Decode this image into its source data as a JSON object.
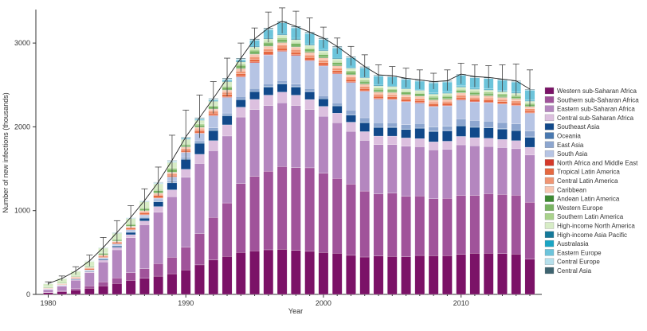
{
  "chart_data": {
    "type": "bar",
    "stacked": true,
    "title": "",
    "xlabel": "Year",
    "ylabel": "Number of new infections (thousands)",
    "x_start": 1980,
    "x_end": 2015,
    "xticks": [
      1980,
      1990,
      2000,
      2010
    ],
    "yticks": [
      0,
      1000,
      2000,
      3000
    ],
    "ylim": [
      0,
      3400
    ],
    "legend_position": "right",
    "totals": [
      130,
      190,
      280,
      400,
      560,
      740,
      920,
      1120,
      1340,
      1600,
      1880,
      2110,
      2340,
      2580,
      2820,
      3050,
      3180,
      3260,
      3200,
      3130,
      3060,
      2960,
      2840,
      2720,
      2620,
      2610,
      2580,
      2560,
      2540,
      2550,
      2630,
      2600,
      2590,
      2570,
      2550,
      2450
    ],
    "upper_bounds": [
      150,
      220,
      330,
      470,
      680,
      880,
      1060,
      1260,
      1520,
      1900,
      2200,
      2380,
      2540,
      2820,
      3000,
      3180,
      3370,
      3420,
      3380,
      3300,
      3190,
      3060,
      2960,
      2860,
      2740,
      2720,
      2700,
      2680,
      2640,
      2680,
      2760,
      2740,
      2730,
      2740,
      2750,
      2680
    ],
    "series": [
      {
        "name": "Western sub-Saharan Africa",
        "color": "#7b1267",
        "share": [
          0.16,
          0.16,
          0.17,
          0.18,
          0.18,
          0.17,
          0.18,
          0.17,
          0.16,
          0.15,
          0.15,
          0.16,
          0.17,
          0.17,
          0.17,
          0.17,
          0.17,
          0.17,
          0.17,
          0.17,
          0.17,
          0.17,
          0.17,
          0.17,
          0.18,
          0.18,
          0.18,
          0.19,
          0.19,
          0.19,
          0.19,
          0.2,
          0.2,
          0.2,
          0.2,
          0.18
        ]
      },
      {
        "name": "Southern sub-Saharan Africa",
        "color": "#a0539a",
        "share": [
          0.03,
          0.05,
          0.06,
          0.07,
          0.08,
          0.09,
          0.1,
          0.1,
          0.11,
          0.12,
          0.14,
          0.17,
          0.21,
          0.24,
          0.28,
          0.29,
          0.3,
          0.31,
          0.32,
          0.33,
          0.32,
          0.31,
          0.31,
          0.3,
          0.29,
          0.3,
          0.29,
          0.29,
          0.28,
          0.28,
          0.28,
          0.28,
          0.29,
          0.29,
          0.29,
          0.29
        ]
      },
      {
        "name": "Eastern sub-Saharan Africa",
        "color": "#b486bf",
        "share": [
          0.22,
          0.28,
          0.34,
          0.38,
          0.42,
          0.44,
          0.45,
          0.46,
          0.45,
          0.44,
          0.43,
          0.38,
          0.33,
          0.3,
          0.27,
          0.26,
          0.25,
          0.24,
          0.24,
          0.23,
          0.23,
          0.23,
          0.23,
          0.23,
          0.23,
          0.23,
          0.24,
          0.24,
          0.24,
          0.24,
          0.24,
          0.24,
          0.23,
          0.23,
          0.23,
          0.24
        ]
      },
      {
        "name": "Central sub-Saharan Africa",
        "color": "#dcc0df",
        "share": [
          0.03,
          0.03,
          0.03,
          0.03,
          0.04,
          0.04,
          0.04,
          0.04,
          0.05,
          0.05,
          0.05,
          0.05,
          0.05,
          0.05,
          0.04,
          0.04,
          0.04,
          0.04,
          0.04,
          0.04,
          0.04,
          0.04,
          0.04,
          0.04,
          0.04,
          0.04,
          0.04,
          0.04,
          0.04,
          0.04,
          0.04,
          0.04,
          0.04,
          0.04,
          0.04,
          0.04
        ]
      },
      {
        "name": "Southeast Asia",
        "color": "#11498a",
        "share": [
          0.02,
          0.02,
          0.02,
          0.02,
          0.02,
          0.02,
          0.03,
          0.03,
          0.04,
          0.05,
          0.06,
          0.06,
          0.05,
          0.04,
          0.03,
          0.03,
          0.03,
          0.03,
          0.03,
          0.03,
          0.03,
          0.03,
          0.03,
          0.04,
          0.04,
          0.04,
          0.04,
          0.05,
          0.05,
          0.05,
          0.05,
          0.05,
          0.05,
          0.05,
          0.05,
          0.05
        ]
      },
      {
        "name": "Oceania",
        "color": "#4878b0",
        "share": [
          0.003,
          0.003,
          0.003,
          0.003,
          0.003,
          0.003,
          0.003,
          0.003,
          0.003,
          0.003,
          0.003,
          0.003,
          0.003,
          0.003,
          0.003,
          0.003,
          0.003,
          0.003,
          0.003,
          0.003,
          0.003,
          0.003,
          0.003,
          0.003,
          0.003,
          0.003,
          0.003,
          0.003,
          0.003,
          0.003,
          0.003,
          0.003,
          0.003,
          0.003,
          0.003,
          0.003
        ]
      },
      {
        "name": "East Asia",
        "color": "#8da6cf",
        "share": [
          0.01,
          0.01,
          0.01,
          0.01,
          0.01,
          0.01,
          0.01,
          0.01,
          0.01,
          0.01,
          0.01,
          0.01,
          0.01,
          0.01,
          0.01,
          0.01,
          0.01,
          0.01,
          0.01,
          0.01,
          0.01,
          0.01,
          0.02,
          0.02,
          0.02,
          0.02,
          0.02,
          0.02,
          0.02,
          0.02,
          0.03,
          0.03,
          0.03,
          0.03,
          0.03,
          0.03
        ]
      },
      {
        "name": "South Asia",
        "color": "#b6c4e4",
        "share": [
          0.02,
          0.02,
          0.02,
          0.02,
          0.02,
          0.02,
          0.02,
          0.02,
          0.02,
          0.03,
          0.03,
          0.04,
          0.06,
          0.07,
          0.08,
          0.1,
          0.11,
          0.11,
          0.11,
          0.11,
          0.12,
          0.12,
          0.12,
          0.12,
          0.11,
          0.11,
          0.11,
          0.1,
          0.1,
          0.1,
          0.09,
          0.09,
          0.09,
          0.09,
          0.09,
          0.09
        ]
      },
      {
        "name": "North Africa and Middle East",
        "color": "#d4392a",
        "share": [
          0.003,
          0.003,
          0.003,
          0.003,
          0.003,
          0.003,
          0.003,
          0.003,
          0.003,
          0.003,
          0.003,
          0.003,
          0.003,
          0.003,
          0.003,
          0.003,
          0.003,
          0.003,
          0.003,
          0.003,
          0.003,
          0.003,
          0.003,
          0.003,
          0.003,
          0.003,
          0.003,
          0.003,
          0.003,
          0.003,
          0.003,
          0.003,
          0.003,
          0.003,
          0.003,
          0.003
        ]
      },
      {
        "name": "Tropical Latin America",
        "color": "#e56840",
        "share": [
          0.03,
          0.03,
          0.03,
          0.03,
          0.02,
          0.02,
          0.02,
          0.02,
          0.02,
          0.01,
          0.01,
          0.01,
          0.01,
          0.01,
          0.01,
          0.01,
          0.01,
          0.01,
          0.01,
          0.01,
          0.01,
          0.01,
          0.01,
          0.01,
          0.01,
          0.01,
          0.01,
          0.01,
          0.01,
          0.01,
          0.01,
          0.01,
          0.01,
          0.01,
          0.01,
          0.01
        ]
      },
      {
        "name": "Central Latin America",
        "color": "#f09674",
        "share": [
          0.02,
          0.02,
          0.02,
          0.02,
          0.02,
          0.01,
          0.01,
          0.01,
          0.01,
          0.01,
          0.01,
          0.01,
          0.01,
          0.01,
          0.01,
          0.01,
          0.01,
          0.01,
          0.01,
          0.01,
          0.01,
          0.01,
          0.01,
          0.01,
          0.01,
          0.01,
          0.01,
          0.01,
          0.01,
          0.01,
          0.01,
          0.01,
          0.01,
          0.01,
          0.01,
          0.01
        ]
      },
      {
        "name": "Caribbean",
        "color": "#f8c7b2",
        "share": [
          0.03,
          0.02,
          0.02,
          0.02,
          0.01,
          0.01,
          0.01,
          0.01,
          0.01,
          0.01,
          0.01,
          0.01,
          0.01,
          0.01,
          0.01,
          0.01,
          0.01,
          0.01,
          0.01,
          0.01,
          0.01,
          0.01,
          0.01,
          0.01,
          0.01,
          0.01,
          0.01,
          0.01,
          0.01,
          0.01,
          0.01,
          0.01,
          0.01,
          0.01,
          0.01,
          0.01
        ]
      },
      {
        "name": "Andean Latin America",
        "color": "#3d8a32",
        "share": [
          0.003,
          0.003,
          0.003,
          0.003,
          0.003,
          0.003,
          0.003,
          0.003,
          0.003,
          0.003,
          0.003,
          0.003,
          0.003,
          0.003,
          0.003,
          0.003,
          0.003,
          0.003,
          0.003,
          0.003,
          0.003,
          0.003,
          0.003,
          0.003,
          0.003,
          0.003,
          0.003,
          0.003,
          0.003,
          0.003,
          0.003,
          0.003,
          0.003,
          0.003,
          0.003,
          0.003
        ]
      },
      {
        "name": "Western Europe",
        "color": "#79b462",
        "share": [
          0.05,
          0.04,
          0.03,
          0.03,
          0.03,
          0.02,
          0.02,
          0.02,
          0.02,
          0.02,
          0.01,
          0.01,
          0.01,
          0.01,
          0.01,
          0.01,
          0.01,
          0.01,
          0.01,
          0.01,
          0.01,
          0.01,
          0.01,
          0.01,
          0.01,
          0.01,
          0.01,
          0.01,
          0.01,
          0.01,
          0.01,
          0.01,
          0.01,
          0.01,
          0.01,
          0.01
        ]
      },
      {
        "name": "Southern Latin America",
        "color": "#a9d28c",
        "share": [
          0.01,
          0.01,
          0.01,
          0.01,
          0.01,
          0.01,
          0.01,
          0.01,
          0.01,
          0.01,
          0.005,
          0.005,
          0.005,
          0.005,
          0.005,
          0.005,
          0.005,
          0.005,
          0.005,
          0.005,
          0.005,
          0.005,
          0.005,
          0.005,
          0.005,
          0.005,
          0.005,
          0.005,
          0.005,
          0.005,
          0.005,
          0.005,
          0.005,
          0.005,
          0.005,
          0.005
        ]
      },
      {
        "name": "High-income North America",
        "color": "#d7ecc6",
        "share": [
          0.28,
          0.23,
          0.17,
          0.13,
          0.1,
          0.09,
          0.07,
          0.06,
          0.05,
          0.04,
          0.03,
          0.02,
          0.02,
          0.02,
          0.01,
          0.01,
          0.01,
          0.01,
          0.01,
          0.01,
          0.01,
          0.01,
          0.01,
          0.01,
          0.01,
          0.01,
          0.01,
          0.01,
          0.01,
          0.01,
          0.01,
          0.01,
          0.01,
          0.01,
          0.01,
          0.01
        ]
      },
      {
        "name": "High-income Asia Pacific",
        "color": "#15799a",
        "share": [
          0.003,
          0.003,
          0.003,
          0.003,
          0.003,
          0.003,
          0.003,
          0.003,
          0.003,
          0.003,
          0.003,
          0.003,
          0.003,
          0.003,
          0.003,
          0.003,
          0.003,
          0.003,
          0.003,
          0.003,
          0.003,
          0.003,
          0.003,
          0.003,
          0.003,
          0.003,
          0.003,
          0.003,
          0.003,
          0.003,
          0.003,
          0.003,
          0.003,
          0.003,
          0.003,
          0.003
        ]
      },
      {
        "name": "Australasia",
        "color": "#1aa5c4",
        "share": [
          0.003,
          0.003,
          0.003,
          0.003,
          0.003,
          0.003,
          0.003,
          0.003,
          0.003,
          0.003,
          0.003,
          0.003,
          0.003,
          0.003,
          0.003,
          0.003,
          0.003,
          0.003,
          0.003,
          0.003,
          0.003,
          0.003,
          0.003,
          0.003,
          0.003,
          0.003,
          0.003,
          0.003,
          0.003,
          0.003,
          0.003,
          0.003,
          0.003,
          0.003,
          0.003,
          0.003
        ]
      },
      {
        "name": "Eastern Europe",
        "color": "#6cc4db",
        "share": [
          0.003,
          0.003,
          0.003,
          0.003,
          0.003,
          0.003,
          0.003,
          0.003,
          0.003,
          0.003,
          0.003,
          0.003,
          0.003,
          0.003,
          0.003,
          0.02,
          0.03,
          0.04,
          0.04,
          0.04,
          0.04,
          0.04,
          0.04,
          0.04,
          0.04,
          0.04,
          0.04,
          0.04,
          0.05,
          0.05,
          0.05,
          0.05,
          0.05,
          0.05,
          0.05,
          0.05
        ]
      },
      {
        "name": "Central Europe",
        "color": "#b6e0ec",
        "share": [
          0.003,
          0.003,
          0.003,
          0.003,
          0.003,
          0.003,
          0.003,
          0.003,
          0.003,
          0.003,
          0.003,
          0.003,
          0.003,
          0.003,
          0.003,
          0.003,
          0.003,
          0.003,
          0.003,
          0.003,
          0.003,
          0.003,
          0.003,
          0.003,
          0.003,
          0.003,
          0.003,
          0.003,
          0.003,
          0.003,
          0.003,
          0.003,
          0.003,
          0.003,
          0.003,
          0.003
        ]
      },
      {
        "name": "Central Asia",
        "color": "#3e6470",
        "share": [
          0.003,
          0.003,
          0.003,
          0.003,
          0.003,
          0.003,
          0.003,
          0.003,
          0.003,
          0.003,
          0.003,
          0.003,
          0.003,
          0.003,
          0.003,
          0.003,
          0.003,
          0.003,
          0.003,
          0.003,
          0.003,
          0.003,
          0.003,
          0.003,
          0.003,
          0.003,
          0.003,
          0.003,
          0.003,
          0.003,
          0.003,
          0.003,
          0.003,
          0.003,
          0.003,
          0.003
        ]
      }
    ]
  }
}
